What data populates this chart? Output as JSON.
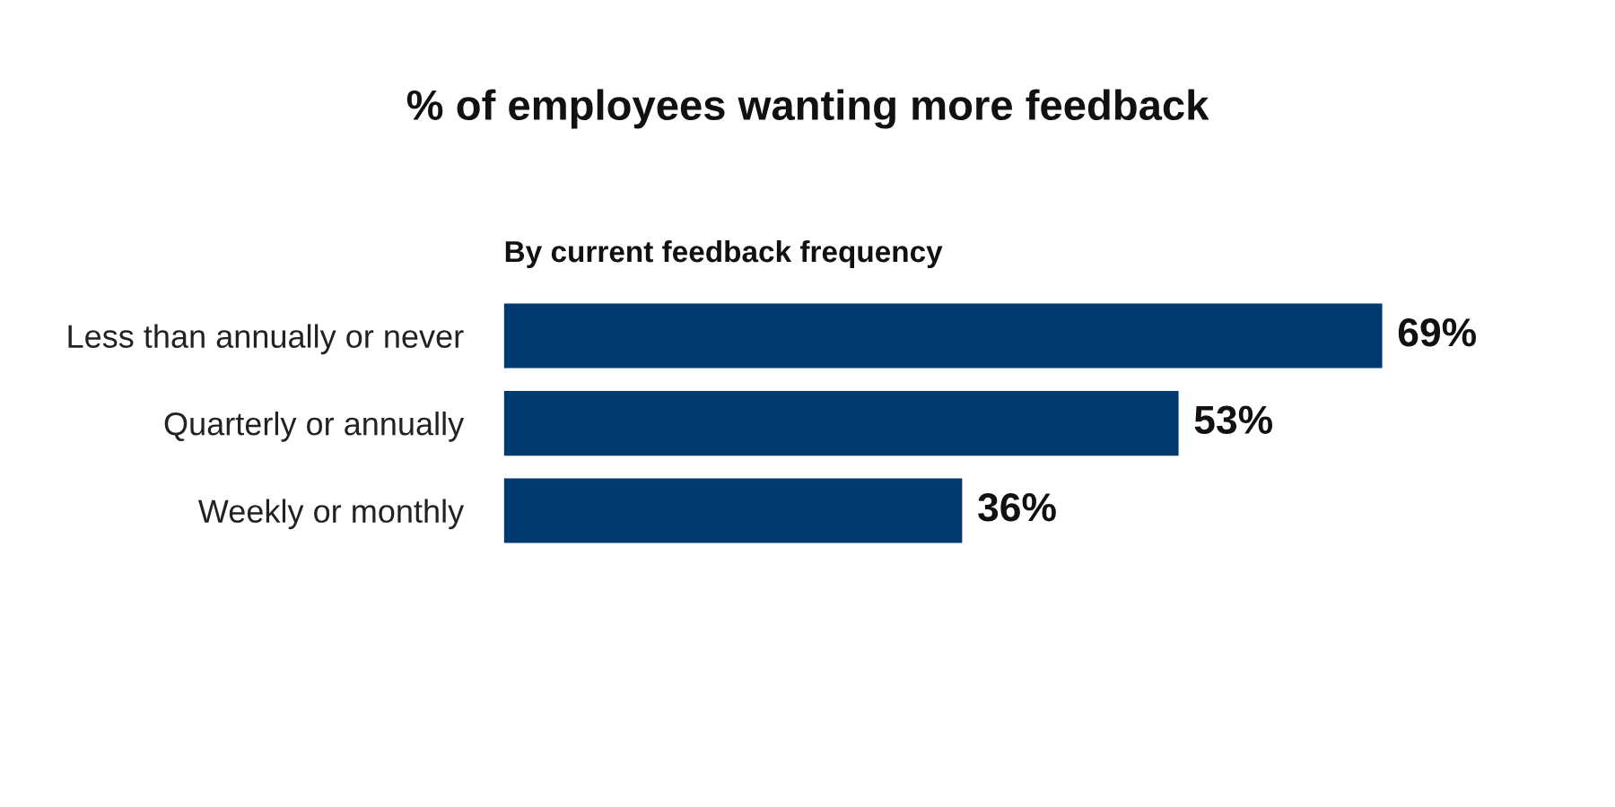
{
  "chart_data": {
    "type": "bar",
    "orientation": "horizontal",
    "title": "% of employees wanting more feedback",
    "subtitle": "By current feedback frequency",
    "categories": [
      "Less than annually or never",
      "Quarterly or annually",
      "Weekly or monthly"
    ],
    "values": [
      69,
      53,
      36
    ],
    "color": "#003a70",
    "value_labels": [
      "69%",
      "53%",
      "36%"
    ],
    "grid": false,
    "legend": false
  }
}
